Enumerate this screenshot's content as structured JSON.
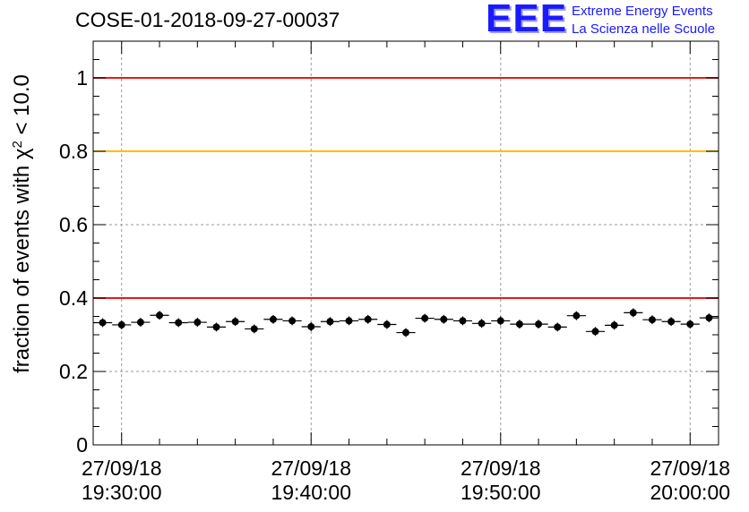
{
  "header": {
    "run_title": "COSE-01-2018-09-27-00037",
    "logo_text": "EEE",
    "logo_line1": "Extreme Energy Events",
    "logo_line2": "La Scienza nelle Scuole"
  },
  "chart_data": {
    "type": "scatter",
    "title": "COSE-01-2018-09-27-00037",
    "ylabel_text": "fraction of events with χ",
    "ylabel_sup": "2",
    "ylabel_tail": " < 10.0",
    "xlim": [
      "2018-09-27 19:28:30",
      "2018-09-27 20:01:30"
    ],
    "ylim": [
      0,
      1.1
    ],
    "y_ticks": [
      0,
      0.2,
      0.4,
      0.6,
      0.8,
      1
    ],
    "y_tick_labels": [
      "0",
      "0.2",
      "0.4",
      "0.6",
      "0.8",
      "1"
    ],
    "x_ticks": [
      {
        "t": "2018-09-27 19:30:00",
        "date": "27/09/18",
        "time": "19:30:00"
      },
      {
        "t": "2018-09-27 19:40:00",
        "date": "27/09/18",
        "time": "19:40:00"
      },
      {
        "t": "2018-09-27 19:50:00",
        "date": "27/09/18",
        "time": "19:50:00"
      },
      {
        "t": "2018-09-27 20:00:00",
        "date": "27/09/18",
        "time": "20:00:00"
      }
    ],
    "grid": true,
    "reference_lines": [
      {
        "y": 1.0,
        "color": "#e8191d"
      },
      {
        "y": 0.8,
        "color": "#ffc000"
      },
      {
        "y": 0.4,
        "color": "#e8191d"
      }
    ],
    "series": [
      {
        "marker_color": "#000000",
        "x": [
          "2018-09-27 19:29:00",
          "2018-09-27 19:30:00",
          "2018-09-27 19:31:00",
          "2018-09-27 19:32:00",
          "2018-09-27 19:33:00",
          "2018-09-27 19:34:00",
          "2018-09-27 19:35:00",
          "2018-09-27 19:36:00",
          "2018-09-27 19:37:00",
          "2018-09-27 19:38:00",
          "2018-09-27 19:39:00",
          "2018-09-27 19:40:00",
          "2018-09-27 19:41:00",
          "2018-09-27 19:42:00",
          "2018-09-27 19:43:00",
          "2018-09-27 19:44:00",
          "2018-09-27 19:45:00",
          "2018-09-27 19:46:00",
          "2018-09-27 19:47:00",
          "2018-09-27 19:48:00",
          "2018-09-27 19:49:00",
          "2018-09-27 19:50:00",
          "2018-09-27 19:51:00",
          "2018-09-27 19:52:00",
          "2018-09-27 19:53:00",
          "2018-09-27 19:54:00",
          "2018-09-27 19:55:00",
          "2018-09-27 19:56:00",
          "2018-09-27 19:57:00",
          "2018-09-27 19:58:00",
          "2018-09-27 19:59:00",
          "2018-09-27 20:00:00",
          "2018-09-27 20:01:00"
        ],
        "y": [
          0.333,
          0.327,
          0.334,
          0.353,
          0.333,
          0.334,
          0.321,
          0.336,
          0.316,
          0.342,
          0.338,
          0.322,
          0.336,
          0.338,
          0.342,
          0.328,
          0.306,
          0.345,
          0.342,
          0.338,
          0.331,
          0.338,
          0.329,
          0.329,
          0.321,
          0.352,
          0.309,
          0.326,
          0.36,
          0.341,
          0.336,
          0.329,
          0.346
        ],
        "yerr": 0.012
      }
    ]
  }
}
